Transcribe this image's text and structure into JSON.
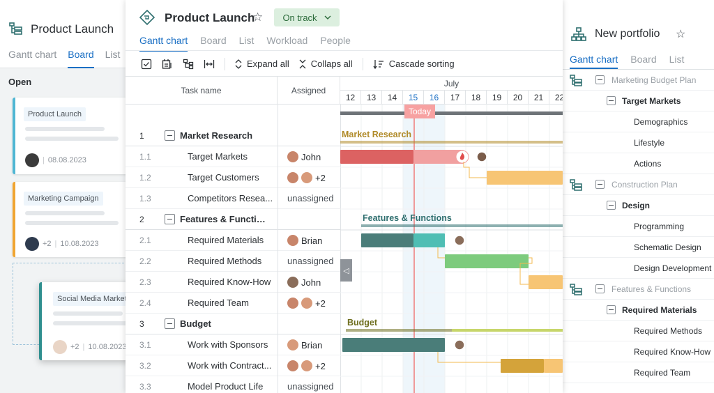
{
  "left_panel": {
    "title": "Product Launch",
    "tabs": [
      "Gantt chart",
      "Board",
      "List"
    ],
    "active_tab": "Board",
    "column_label": "Open",
    "cards": [
      {
        "tag": "Product Launch",
        "date": "08.08.2023",
        "stripe": "#4fb6d3"
      },
      {
        "tag": "Marketing Campaign",
        "extra": "+2",
        "date": "10.08.2023",
        "stripe": "#f0a531"
      },
      {
        "tag": "Social Media Market",
        "extra": "+2",
        "date": "10.08.2023",
        "stripe": "#2f8f8f"
      }
    ]
  },
  "main": {
    "title": "Product Launch",
    "status": "On track",
    "tabs": [
      "Gantt chart",
      "Board",
      "List",
      "Workload",
      "People"
    ],
    "active_tab": "Gantt chart",
    "toolbar": {
      "expand_all": "Expand all",
      "collapse_all": "Collaps all",
      "cascade_sorting": "Cascade sorting"
    },
    "columns": {
      "task": "Task name",
      "assigned": "Assigned"
    },
    "month": "July",
    "days": [
      "12",
      "13",
      "14",
      "15",
      "16",
      "17",
      "18",
      "19",
      "20",
      "21",
      "22"
    ],
    "highlight_days": [
      "15",
      "16"
    ],
    "today_label": "Today",
    "tasks": [
      {
        "num": "1",
        "name": "Market Research",
        "group": true
      },
      {
        "num": "1.1",
        "name": "Target Markets",
        "assigned": "John"
      },
      {
        "num": "1.2",
        "name": "Target Customers",
        "assigned": "+2"
      },
      {
        "num": "1.3",
        "name": "Competitors Resea...",
        "assigned": "unassigned"
      },
      {
        "num": "2",
        "name": "Features & Functions",
        "group": true
      },
      {
        "num": "2.1",
        "name": "Required Materials",
        "assigned": "Brian"
      },
      {
        "num": "2.2",
        "name": "Required Methods",
        "assigned": "unassigned"
      },
      {
        "num": "2.3",
        "name": "Required Know-How",
        "assigned": "John"
      },
      {
        "num": "2.4",
        "name": "Required Team",
        "assigned": "+2"
      },
      {
        "num": "3",
        "name": "Budget",
        "group": true
      },
      {
        "num": "3.1",
        "name": "Work with Sponsors",
        "assigned": "Brian"
      },
      {
        "num": "3.2",
        "name": "Work with Contract...",
        "assigned": "+2"
      },
      {
        "num": "3.3",
        "name": "Model Product Life",
        "assigned": "unassigned"
      }
    ],
    "chart_labels": {
      "market_research": "Market Research",
      "features_functions": "Features & Functions",
      "budget": "Budget"
    }
  },
  "right_panel": {
    "title": "New portfolio",
    "tabs": [
      "Gantt chart",
      "Board",
      "List"
    ],
    "active_tab": "Gantt chart",
    "items": [
      {
        "level": 0,
        "label": "Marketing Budget Plan"
      },
      {
        "level": 1,
        "label": "Target Markets"
      },
      {
        "level": 2,
        "label": "Demographics"
      },
      {
        "level": 2,
        "label": "Lifestyle"
      },
      {
        "level": 2,
        "label": "Actions"
      },
      {
        "level": 0,
        "label": "Construction Plan"
      },
      {
        "level": 1,
        "label": "Design"
      },
      {
        "level": 2,
        "label": "Programming"
      },
      {
        "level": 2,
        "label": "Schematic Design"
      },
      {
        "level": 2,
        "label": "Design Development"
      },
      {
        "level": 0,
        "label": "Features & Functions"
      },
      {
        "level": 1,
        "label": "Required Materials"
      },
      {
        "level": 2,
        "label": "Required Methods"
      },
      {
        "level": 2,
        "label": "Required Know-How"
      },
      {
        "level": 2,
        "label": "Required Team"
      }
    ]
  },
  "colors": {
    "accent": "#1a6fc4",
    "status_bg": "#dcefdf",
    "today": "#f28b8b",
    "market_research": "#c9a040",
    "features": "#3e7f7a",
    "budget": "#8a8a2a"
  }
}
